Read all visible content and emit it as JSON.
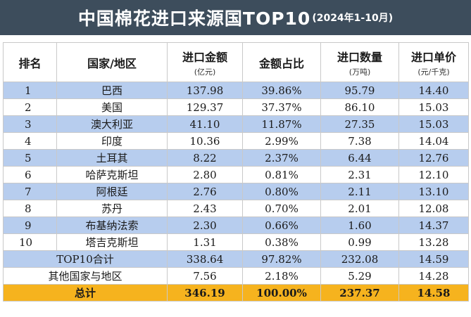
{
  "title": {
    "main": "中国棉花进口来源国TOP10",
    "sub": "(2024年1-10月)"
  },
  "headers": {
    "rank": "排名",
    "country": "国家/地区",
    "amount": "进口金额",
    "amount_unit": "(亿元)",
    "share": "金额占比",
    "qty": "进口数量",
    "qty_unit": "(万吨)",
    "price": "进口单价",
    "price_unit": "(元/千克)"
  },
  "rows": [
    {
      "rank": "1",
      "country": "巴西",
      "amount": "137.98",
      "share": "39.86%",
      "qty": "95.79",
      "price": "14.40"
    },
    {
      "rank": "2",
      "country": "美国",
      "amount": "129.37",
      "share": "37.37%",
      "qty": "86.10",
      "price": "15.03"
    },
    {
      "rank": "3",
      "country": "澳大利亚",
      "amount": "41.10",
      "share": "11.87%",
      "qty": "27.35",
      "price": "15.03"
    },
    {
      "rank": "4",
      "country": "印度",
      "amount": "10.36",
      "share": "2.99%",
      "qty": "7.38",
      "price": "14.04"
    },
    {
      "rank": "5",
      "country": "土耳其",
      "amount": "8.22",
      "share": "2.37%",
      "qty": "6.44",
      "price": "12.76"
    },
    {
      "rank": "6",
      "country": "哈萨克斯坦",
      "amount": "2.80",
      "share": "0.81%",
      "qty": "2.31",
      "price": "12.10"
    },
    {
      "rank": "7",
      "country": "阿根廷",
      "amount": "2.76",
      "share": "0.80%",
      "qty": "2.11",
      "price": "13.10"
    },
    {
      "rank": "8",
      "country": "苏丹",
      "amount": "2.43",
      "share": "0.70%",
      "qty": "2.01",
      "price": "12.08"
    },
    {
      "rank": "9",
      "country": "布基纳法索",
      "amount": "2.30",
      "share": "0.66%",
      "qty": "1.60",
      "price": "14.37"
    },
    {
      "rank": "10",
      "country": "塔吉克斯坦",
      "amount": "1.31",
      "share": "0.38%",
      "qty": "0.99",
      "price": "13.28"
    }
  ],
  "top10": {
    "label": "TOP10合计",
    "amount": "338.64",
    "share": "97.82%",
    "qty": "232.08",
    "price": "14.59"
  },
  "others": {
    "label": "其他国家与地区",
    "amount": "7.56",
    "share": "2.18%",
    "qty": "5.29",
    "price": "14.28"
  },
  "total": {
    "label": "总计",
    "amount": "346.19",
    "share": "100.00%",
    "qty": "237.37",
    "price": "14.58"
  },
  "colors": {
    "title_bg": "#3d4d5c",
    "row_blue": "#b7cdee",
    "row_white": "#ffffff",
    "total_bg": "#f6b31e"
  }
}
